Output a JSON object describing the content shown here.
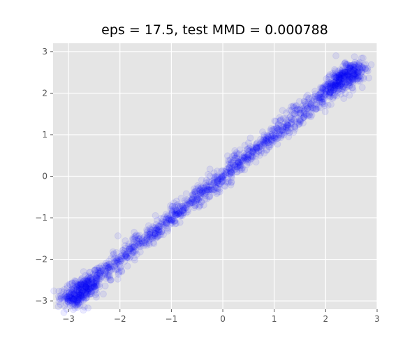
{
  "chart_data": {
    "type": "scatter",
    "title": "eps = 17.5, test MMD = 0.000788",
    "xlabel": "",
    "ylabel": "",
    "xlim": [
      -3.3,
      3.0
    ],
    "ylim": [
      -3.2,
      3.2
    ],
    "x_ticks": [
      -3,
      -2,
      -1,
      0,
      1,
      2,
      3
    ],
    "y_ticks": [
      -3,
      -2,
      -1,
      0,
      1,
      2,
      3
    ],
    "x_tick_labels": [
      "−3",
      "−2",
      "−1",
      "0",
      "1",
      "2",
      "3"
    ],
    "y_tick_labels": [
      "−3",
      "−2",
      "−1",
      "0",
      "1",
      "2",
      "3"
    ],
    "grid": true,
    "style": "ggplot",
    "marker_color": "#0000ff",
    "marker_alpha": 0.08,
    "series": [
      {
        "points": [
          [
            -2.46,
            -2.43
          ],
          [
            -2.27,
            -2.29
          ],
          [
            -2.07,
            -2.03
          ],
          [
            -1.88,
            -1.92
          ],
          [
            -1.71,
            -1.67
          ],
          [
            -1.52,
            -1.55
          ],
          [
            -1.33,
            -1.3
          ],
          [
            -1.14,
            -1.18
          ],
          [
            -0.96,
            -0.93
          ],
          [
            -0.77,
            -0.81
          ],
          [
            -0.58,
            -0.55
          ],
          [
            -0.39,
            -0.41
          ],
          [
            -0.19,
            -0.17
          ],
          [
            0.0,
            -0.03
          ],
          [
            0.19,
            0.21
          ],
          [
            0.38,
            0.35
          ],
          [
            0.57,
            0.59
          ],
          [
            0.76,
            0.73
          ],
          [
            0.95,
            0.98
          ],
          [
            1.14,
            1.1
          ],
          [
            1.33,
            1.36
          ],
          [
            1.52,
            1.48
          ],
          [
            1.71,
            1.73
          ],
          [
            1.9,
            1.85
          ],
          [
            2.09,
            2.12
          ],
          [
            2.28,
            2.24
          ],
          [
            2.44,
            2.45
          ],
          [
            -2.4,
            -2.6
          ],
          [
            -2.52,
            -2.35
          ],
          [
            -2.18,
            -2.5
          ],
          [
            -1.62,
            -1.42
          ],
          [
            -1.2,
            -1.4
          ],
          [
            -0.48,
            -0.28
          ],
          [
            0.12,
            0.35
          ],
          [
            0.85,
            0.62
          ],
          [
            1.42,
            1.68
          ],
          [
            1.98,
            1.7
          ],
          [
            2.4,
            2.64
          ],
          [
            2.62,
            2.35
          ],
          [
            -2.6,
            -2.66
          ],
          [
            -0.9,
            -0.6
          ],
          [
            0.5,
            0.8
          ],
          [
            1.65,
            1.95
          ],
          [
            2.2,
            2.9
          ],
          [
            -3.0,
            -2.97
          ]
        ]
      }
    ]
  }
}
